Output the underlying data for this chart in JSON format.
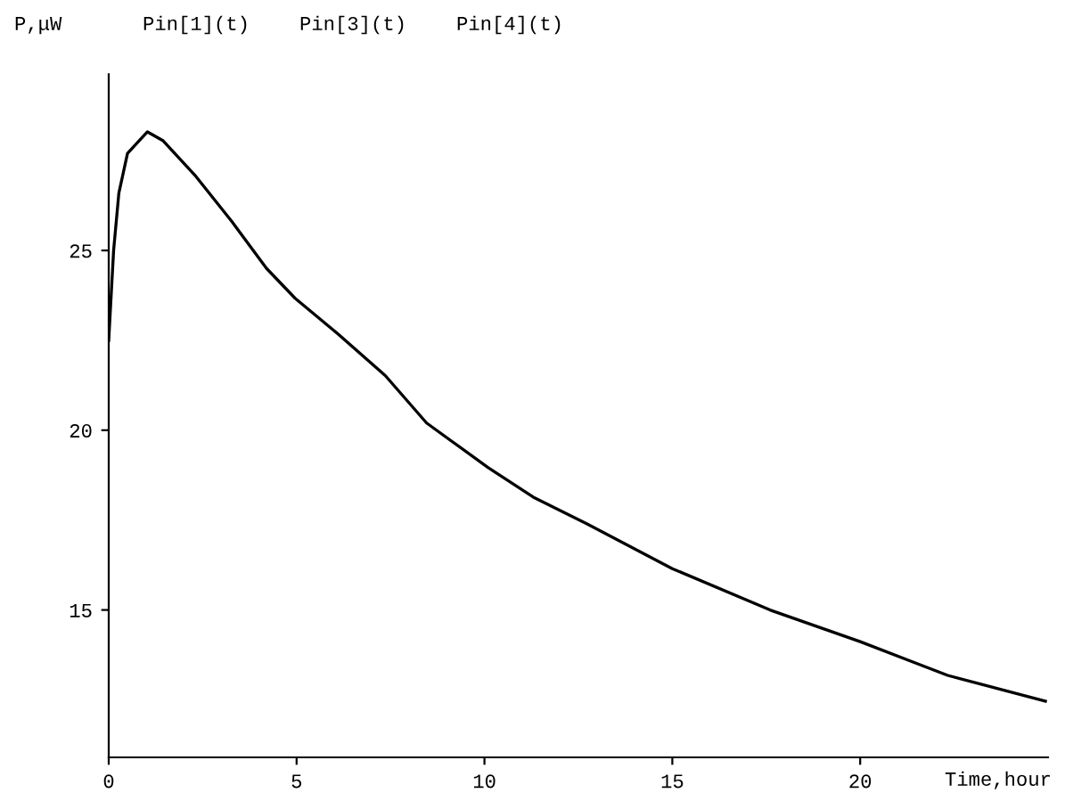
{
  "chart_data": {
    "type": "line",
    "xlabel": "Time,hour",
    "ylabel": "P,μW",
    "annotations": [
      "Pin[3](t)",
      "Pin[4](t)"
    ],
    "series": [
      {
        "name": "Pin[1](t)",
        "color": "#000000",
        "x": [
          0,
          0.13,
          0.27,
          0.5,
          1.03,
          1.45,
          2.32,
          3.28,
          4.2,
          4.96,
          6.1,
          7.36,
          8.46,
          10.1,
          11.3,
          12.72,
          15.0,
          17.6,
          20.0,
          22.33,
          24.93
        ],
        "values": [
          22.5,
          25.0,
          26.6,
          27.7,
          28.3,
          28.05,
          27.06,
          25.8,
          24.5,
          23.67,
          22.68,
          21.52,
          20.2,
          18.96,
          18.14,
          17.4,
          16.15,
          15.0,
          14.12,
          13.18,
          12.46
        ]
      }
    ],
    "xlim": [
      0,
      25
    ],
    "ylim": [
      10.9,
      29.9
    ],
    "xticks": [
      0,
      5,
      10,
      15,
      20
    ],
    "yticks": [
      15,
      20,
      25
    ],
    "grid": false,
    "legend": "top left",
    "marker": "none",
    "line_style": "solid"
  }
}
